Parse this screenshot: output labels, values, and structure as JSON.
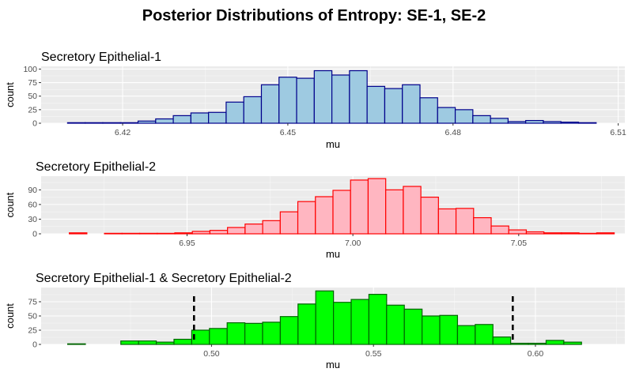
{
  "title": "Posterior Distributions of Entropy: SE-1, SE-2",
  "chart_data": [
    {
      "type": "bar",
      "subtitle": "Secretory Epithelial-1",
      "xlabel": "mu",
      "ylabel": "count",
      "xlim": [
        6.4052,
        6.5112
      ],
      "ylim": [
        0,
        105
      ],
      "xticks": [
        6.42,
        6.45,
        6.48,
        6.51
      ],
      "xtick_labels": [
        "6.42",
        "6.45",
        "6.48",
        "6.51"
      ],
      "yticks": [
        0,
        25,
        50,
        75,
        100
      ],
      "ytick_labels": [
        "0",
        "25",
        "50",
        "75",
        "100"
      ],
      "bins_start": 6.41,
      "bin_width": 0.0032,
      "counts": [
        1,
        1,
        1,
        1,
        4,
        8,
        14,
        19,
        20,
        39,
        49,
        71,
        85,
        83,
        97,
        89,
        97,
        68,
        64,
        71,
        47,
        29,
        25,
        14,
        9,
        3,
        5,
        3,
        2,
        1
      ],
      "fill": "#9ecae1",
      "stroke": "#00008b",
      "grid": true,
      "legend": "none"
    },
    {
      "type": "bar",
      "subtitle": "Secretory Epithelial-2",
      "xlabel": "mu",
      "ylabel": "count",
      "xlim": [
        6.906,
        7.082
      ],
      "ylim": [
        0,
        118
      ],
      "xticks": [
        6.95,
        7.0,
        7.05
      ],
      "xtick_labels": [
        "6.95",
        "7.00",
        "7.05"
      ],
      "yticks": [
        0,
        30,
        60,
        90
      ],
      "ytick_labels": [
        "0",
        "30",
        "60",
        "90"
      ],
      "bins_start": 6.9145,
      "bin_width": 0.0053,
      "counts": [
        2,
        0,
        1,
        1,
        1,
        1,
        2,
        5,
        7,
        13,
        20,
        27,
        45,
        66,
        76,
        89,
        110,
        113,
        90,
        97,
        75,
        51,
        52,
        33,
        16,
        8,
        4,
        2,
        2,
        1,
        2
      ],
      "fill": "#ffb6c1",
      "stroke": "#ff0000",
      "grid": true,
      "legend": "none"
    },
    {
      "type": "bar",
      "subtitle": "Secretory Epithelial-1 & Secretory Epithelial-2",
      "xlabel": "mu",
      "ylabel": "count",
      "xlim": [
        0.4474,
        0.6276
      ],
      "ylim": [
        0,
        100
      ],
      "xticks": [
        0.5,
        0.55,
        0.6
      ],
      "xtick_labels": [
        "0.50",
        "0.55",
        "0.60"
      ],
      "yticks": [
        0,
        25,
        50,
        75
      ],
      "ytick_labels": [
        "0",
        "25",
        "50",
        "75"
      ],
      "bins_start": 0.4556,
      "bin_width": 0.00547,
      "counts": [
        1,
        0,
        0,
        6,
        6,
        4,
        9,
        25,
        28,
        38,
        37,
        39,
        49,
        71,
        94,
        74,
        79,
        88,
        69,
        62,
        50,
        51,
        33,
        35,
        13,
        2,
        2,
        7,
        4
      ],
      "fill": "#00ff00",
      "stroke": "#006400",
      "vlines": [
        0.4946,
        0.593
      ],
      "vline_style": "dashed black",
      "grid": true,
      "legend": "none"
    }
  ]
}
